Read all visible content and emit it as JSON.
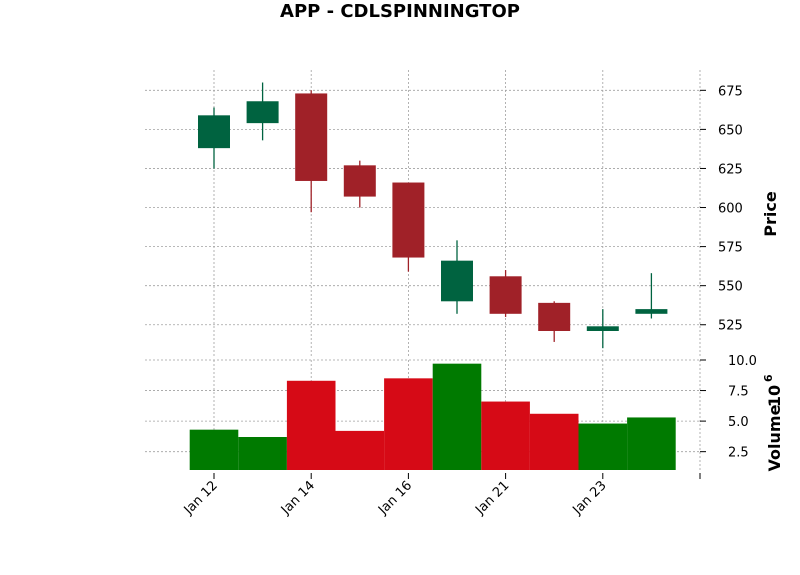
{
  "chart_data": {
    "type": "candlestick",
    "title": "APP - CDLSPINNINGTOP",
    "x_tick_labels": [
      "Jan 12",
      "Jan 14",
      "Jan 16",
      "Jan 21",
      "Jan 23"
    ],
    "x_tick_indices": [
      0,
      2,
      4,
      6,
      8
    ],
    "price": {
      "ylabel": "Price",
      "ylim": [
        505,
        688
      ],
      "ticks": [
        525,
        550,
        575,
        600,
        625,
        650,
        675
      ],
      "ohlc": [
        {
          "open": 638,
          "high": 664,
          "low": 625,
          "close": 659
        },
        {
          "open": 654,
          "high": 680,
          "low": 643,
          "close": 668
        },
        {
          "open": 673,
          "high": 675,
          "low": 597,
          "close": 617
        },
        {
          "open": 627,
          "high": 630,
          "low": 600,
          "close": 607
        },
        {
          "open": 616,
          "high": 616,
          "low": 559,
          "close": 568
        },
        {
          "open": 540,
          "high": 579,
          "low": 532,
          "close": 566
        },
        {
          "open": 556,
          "high": 560,
          "low": 530,
          "close": 532
        },
        {
          "open": 539,
          "high": 540,
          "low": 514,
          "close": 521
        },
        {
          "open": 521,
          "high": 535,
          "low": 510,
          "close": 524
        },
        {
          "open": 532,
          "high": 558,
          "low": 529,
          "close": 535
        }
      ]
    },
    "volume": {
      "ylabel": "Volume",
      "ylabel_exponent": "6",
      "ylim": [
        1.0,
        10.0
      ],
      "ticks": [
        2.5,
        5.0,
        7.5,
        10.0
      ],
      "tick_labels": [
        "2.5",
        "5.0",
        "7.5",
        "10.0"
      ],
      "values": [
        4.3,
        3.7,
        8.3,
        4.2,
        8.5,
        9.7,
        6.6,
        5.6,
        4.8,
        5.3
      ]
    },
    "colors": {
      "up_candle": "#006340",
      "down_candle": "#a02128",
      "up_volume": "#007a00",
      "down_volume": "#d60a16",
      "grid": "#a0a0a0"
    },
    "grid": true
  }
}
